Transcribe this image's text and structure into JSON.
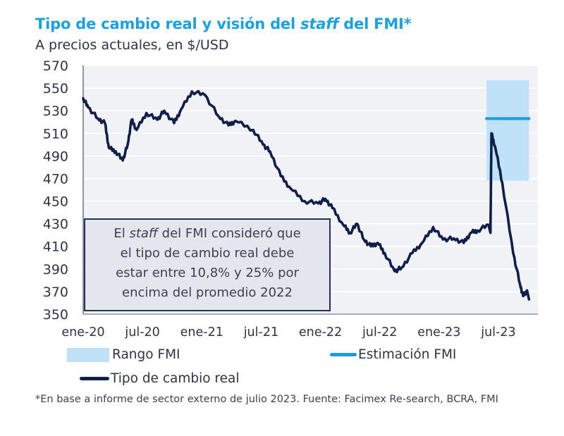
{
  "header": {
    "title_part1": "Tipo de cambio real y visión del ",
    "title_italic": "staff",
    "title_part2": " del FMI*",
    "subtitle": "A precios actuales, en $/USD"
  },
  "annotation": {
    "line1_pre": "El ",
    "line1_italic": "staff",
    "line1_post": " del FMI consideró que",
    "line2": "el tipo de cambio real debe",
    "line3": "estar entre 10,8% y 25% por",
    "line4": "encima del promedio 2022"
  },
  "legend": {
    "band": "Rango FMI",
    "estimate": "Estimación FMI",
    "line": "Tipo de cambio real"
  },
  "footnote": "*En base a informe de sector externo de julio 2023. Fuente: Facimex Re-search, BCRA, FMI",
  "colors": {
    "title": "#1ba1e2",
    "line": "#0f1f4a",
    "band": "#bfe2f8",
    "estimate": "#1b9be0",
    "plot_bg": "#f1f2f6"
  },
  "chart_data": {
    "type": "line",
    "title": "Tipo de cambio real y visión del staff del FMI*",
    "subtitle": "A precios actuales, en $/USD",
    "xlabel": "",
    "ylabel": "",
    "ylim": [
      350,
      570
    ],
    "yticks": [
      570,
      550,
      530,
      510,
      490,
      470,
      450,
      430,
      410,
      390,
      370,
      350
    ],
    "xlim_months": [
      0,
      46
    ],
    "xticks": [
      {
        "label": "ene-20",
        "month": 0
      },
      {
        "label": "jul-20",
        "month": 6
      },
      {
        "label": "ene-21",
        "month": 12
      },
      {
        "label": "jul-21",
        "month": 18
      },
      {
        "label": "ene-22",
        "month": 24
      },
      {
        "label": "jul-22",
        "month": 30
      },
      {
        "label": "ene-23",
        "month": 36
      },
      {
        "label": "jul-23",
        "month": 42
      }
    ],
    "grid": true,
    "legend_position": "bottom",
    "series": [
      {
        "name": "Tipo de cambio real",
        "x_months": [
          0,
          0.5,
          1.5,
          2.2,
          2.6,
          3.3,
          4.0,
          4.5,
          4.9,
          5.4,
          6.4,
          7.5,
          8.2,
          9.2,
          9.9,
          11.0,
          12.3,
          13.7,
          14.7,
          15.4,
          17.2,
          18.2,
          18.9,
          20.0,
          21.0,
          22.4,
          23.8,
          24.5,
          25.2,
          26.3,
          27.0,
          27.7,
          28.4,
          29.1,
          29.8,
          30.5,
          31.5,
          32.2,
          33.3,
          34.3,
          35.4,
          36.4,
          37.5,
          38.5,
          39.2,
          39.9,
          41.0,
          41.2,
          41.3,
          41.7,
          42.4,
          43.5,
          44.2,
          44.5,
          44.9,
          45.1
        ],
        "values": [
          541,
          533,
          523,
          519,
          497,
          494,
          486,
          500,
          522,
          513,
          528,
          522,
          530,
          519,
          531,
          547,
          544,
          525,
          517,
          521,
          513,
          500,
          494,
          472,
          461,
          450,
          448,
          452,
          444,
          429,
          422,
          430,
          416,
          410,
          413,
          404,
          388,
          391,
          404,
          413,
          427,
          416,
          417,
          413,
          422,
          424,
          429,
          422,
          510,
          497,
          466,
          404,
          376,
          366,
          371,
          363
        ]
      },
      {
        "name": "Rango FMI",
        "type": "band",
        "x_months": [
          40.8,
          45.1
        ],
        "low": 468,
        "high": 557
      },
      {
        "name": "Estimación FMI",
        "type": "hline",
        "x_months": [
          40.8,
          45.1
        ],
        "value": 523
      }
    ]
  }
}
